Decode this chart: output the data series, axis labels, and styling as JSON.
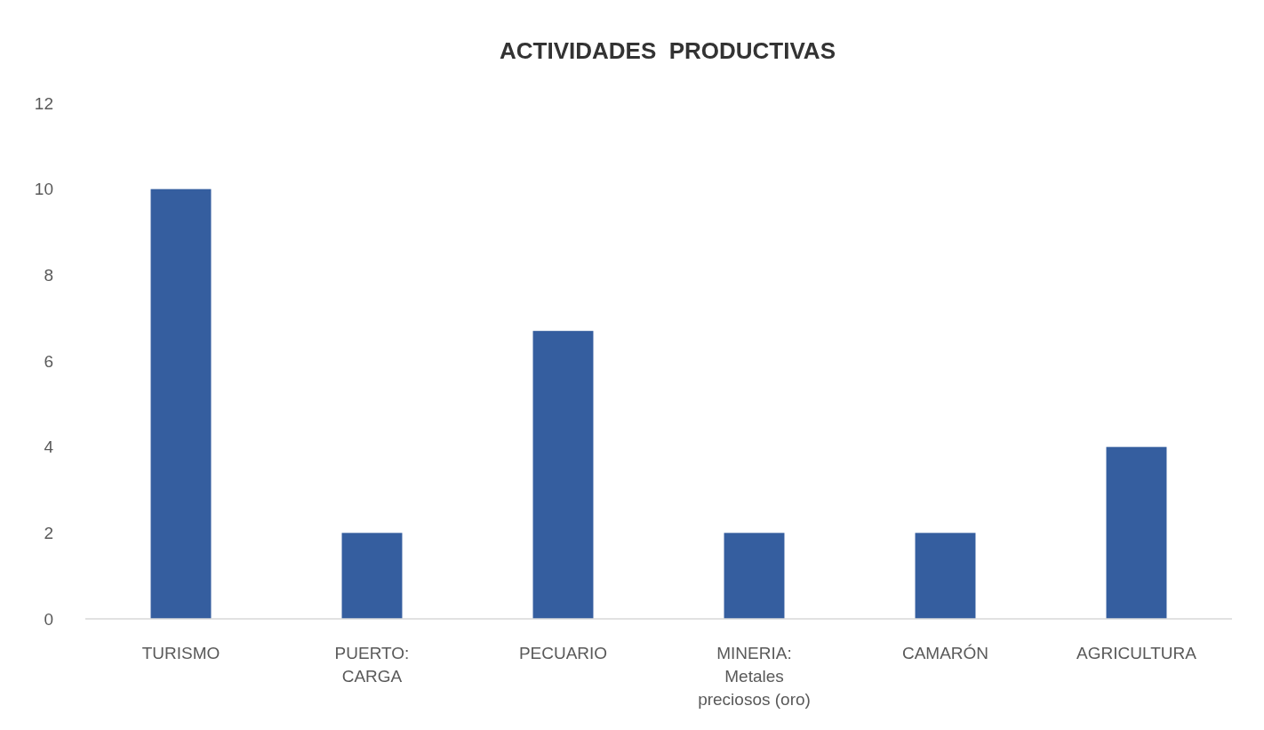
{
  "chart_data": {
    "type": "bar",
    "title": "ACTIVIDADES  PRODUCTIVAS",
    "categories": [
      "TURISMO",
      "PUERTO: CARGA",
      "PECUARIO",
      "MINERIA: Metales preciosos (oro)",
      "CAMARÓN",
      "AGRICULTURA"
    ],
    "values": [
      10,
      2,
      6.7,
      2,
      2,
      4
    ],
    "color": "#355e9f",
    "ylim": [
      0,
      12
    ],
    "yticks": [
      0,
      2,
      4,
      6,
      8,
      10,
      12
    ]
  }
}
